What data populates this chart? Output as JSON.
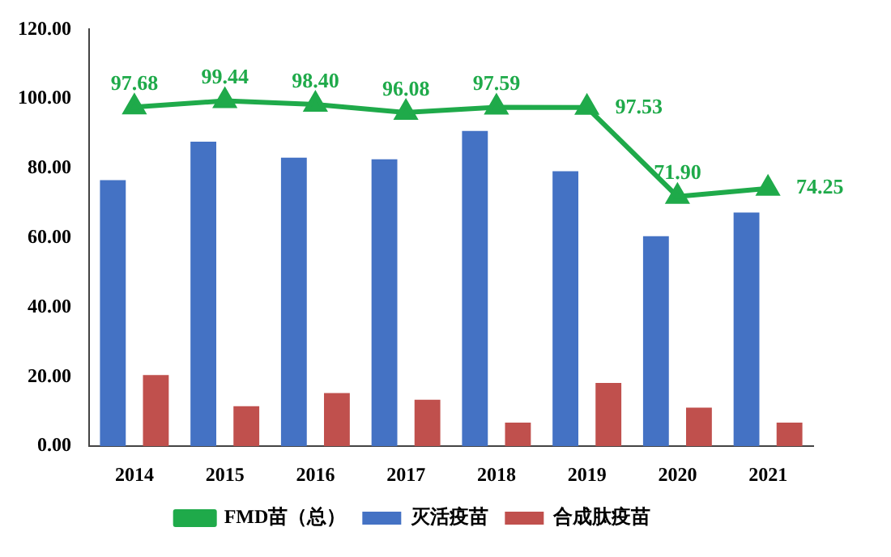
{
  "chart_data": {
    "type": "bar",
    "categories": [
      "2014",
      "2015",
      "2016",
      "2017",
      "2018",
      "2019",
      "2020",
      "2021"
    ],
    "series": [
      {
        "name": "灭活疫苗",
        "color": "#4472c4",
        "values": [
          76.6,
          87.7,
          83.1,
          82.6,
          90.8,
          79.2,
          60.5,
          67.3
        ]
      },
      {
        "name": "合成肽疫苗",
        "color": "#c0504d",
        "values": [
          20.5,
          11.5,
          15.3,
          13.4,
          6.8,
          18.2,
          11.1,
          6.8
        ]
      },
      {
        "name": "FMD苗（总）",
        "type": "line",
        "color": "#1faa4a",
        "marker": "triangle",
        "values": [
          97.68,
          99.44,
          98.4,
          96.08,
          97.59,
          97.53,
          71.9,
          74.25
        ],
        "value_labels": [
          "97.68",
          "99.44",
          "98.40",
          "96.08",
          "97.59",
          "97.53",
          "71.90",
          "74.25"
        ]
      }
    ],
    "ylim": [
      0,
      120
    ],
    "yticks": [
      {
        "value": 0,
        "label": "0.00"
      },
      {
        "value": 20,
        "label": "20.00"
      },
      {
        "value": 40,
        "label": "40.00"
      },
      {
        "value": 60,
        "label": "60.00"
      },
      {
        "value": 80,
        "label": "80.00"
      },
      {
        "value": 100,
        "label": "100.00"
      },
      {
        "value": 120,
        "label": "120.00"
      }
    ],
    "grid": false,
    "legend": "bottom"
  }
}
